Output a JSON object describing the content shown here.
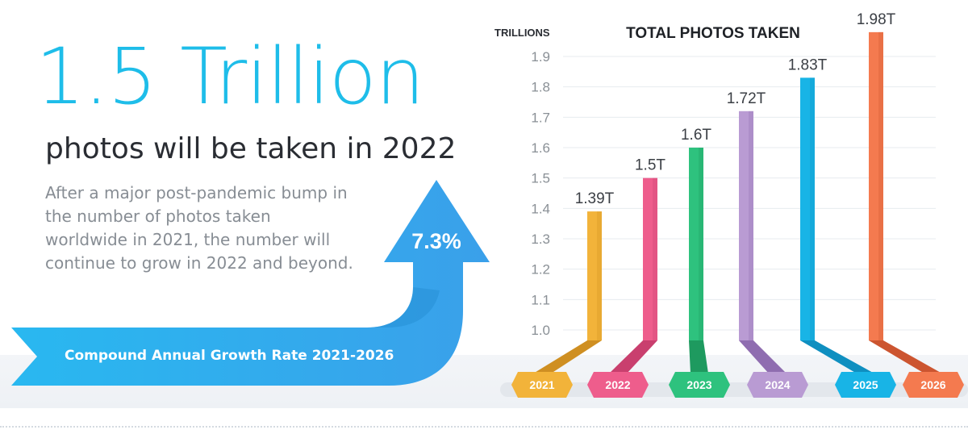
{
  "headline": "1.5 Trillion",
  "subheadline": "photos will be taken in 2022",
  "description_lines": [
    "After a major post-pandemic bump in",
    "the number of photos taken",
    "worldwide in 2021, the number will",
    "continue to grow in 2022 and beyond."
  ],
  "growth": {
    "rate": "7.3%",
    "label": "Compound Annual Growth Rate 2021-2026"
  },
  "colors": {
    "accent": "#1ebde9",
    "arrow": "#2fa9ee",
    "text_dark": "#2a2d33",
    "text_gray": "#878d94"
  },
  "chart_data": {
    "type": "bar",
    "title": "TOTAL PHOTOS TAKEN",
    "ylabel": "TRILLIONS",
    "xlabel": "",
    "categories": [
      "2021",
      "2022",
      "2023",
      "2024",
      "2025",
      "2026"
    ],
    "values": [
      1.39,
      1.5,
      1.6,
      1.72,
      1.83,
      1.98
    ],
    "data_labels": [
      "1.39T",
      "1.5T",
      "1.6T",
      "1.72T",
      "1.83T",
      "1.98T"
    ],
    "yticks": [
      "1.0",
      "1.1",
      "1.2",
      "1.3",
      "1.4",
      "1.5",
      "1.6",
      "1.7",
      "1.8",
      "1.9"
    ],
    "ylim": [
      1.0,
      1.9
    ],
    "grid": true,
    "legend": "none",
    "bar_colors": [
      "#f2b33a",
      "#ee5d8c",
      "#2ec27e",
      "#b99bd3",
      "#18b4e6",
      "#f47a4f"
    ],
    "bar_dark_colors": [
      "#cf8f22",
      "#c93f6e",
      "#1e9a5f",
      "#8f6db0",
      "#0f8fc0",
      "#cc5530"
    ]
  }
}
